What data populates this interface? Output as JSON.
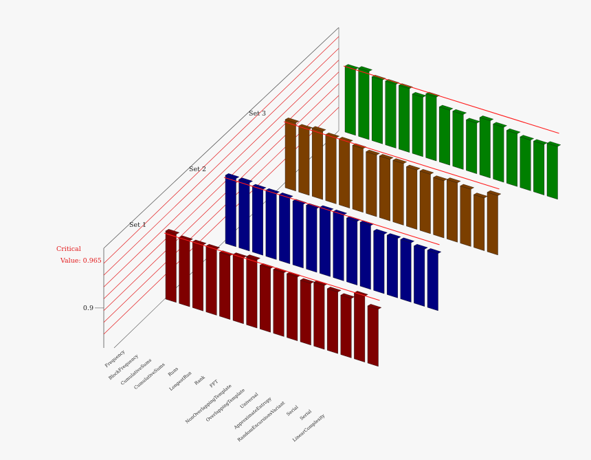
{
  "chart_data": {
    "type": "bar",
    "subtype": "3d-multi-row",
    "categories": [
      "Frequency",
      "BlockFrequency",
      "CumulativeSums",
      "CumulativeSums",
      "Runs",
      "LongestRun",
      "Rank",
      "FFT",
      "NonOverlappingTemplate",
      "OverlappingTemplate",
      "Universal",
      "ApproximateEntropy",
      "RandomExcursionsVariant",
      "Serial",
      "Serial",
      "LinearComplexity"
    ],
    "series": [
      {
        "name": "Set 1",
        "color": "#7f0000",
        "values": [
          0.995,
          0.99,
          0.99,
          0.99,
          0.985,
          0.99,
          0.995,
          0.985,
          0.985,
          0.985,
          0.98,
          0.985,
          0.98,
          0.975,
          0.99,
          0.97
        ]
      },
      {
        "name": "Set 2",
        "color": "#000080",
        "values": [
          0.995,
          0.995,
          0.99,
          0.99,
          0.99,
          0.985,
          0.985,
          0.99,
          0.99,
          0.985,
          0.985,
          0.975,
          0.975,
          0.975,
          0.97,
          0.97
        ]
      },
      {
        "name": "Set 3",
        "color": "#7b3f00",
        "values": [
          0.995,
          0.99,
          0.995,
          0.99,
          0.99,
          0.985,
          0.98,
          0.98,
          0.98,
          0.975,
          0.975,
          0.97,
          0.975,
          0.97,
          0.96,
          0.975
        ]
      },
      {
        "name": "",
        "color": "#007f00",
        "values": [
          0.99,
          0.995,
          0.985,
          0.985,
          0.985,
          0.975,
          0.985,
          0.965,
          0.965,
          0.955,
          0.97,
          0.965,
          0.96,
          0.955,
          0.955,
          0.96
        ]
      }
    ],
    "critical_value": 0.965,
    "critical_label_line1": "Critical",
    "critical_label_line2": "Value: 0.965",
    "zlim": [
      0.84,
      1.0
    ],
    "z_ticks": [
      0.9
    ],
    "grid": true,
    "grid_color": "#e31a1c",
    "axis_color": "#555555"
  }
}
